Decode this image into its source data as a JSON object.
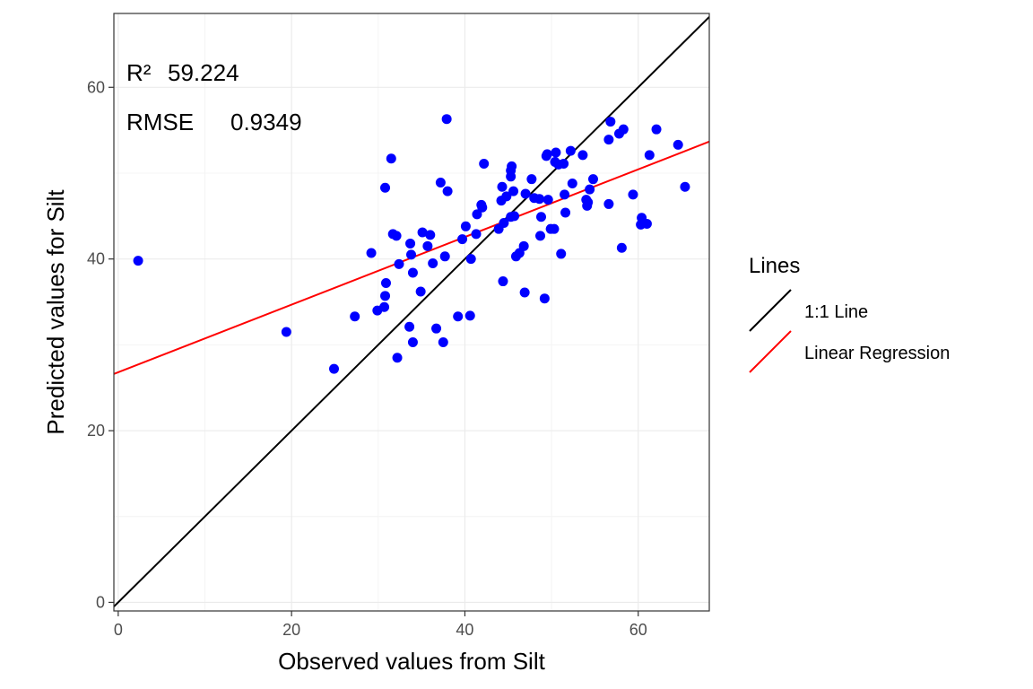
{
  "chart_data": {
    "type": "scatter",
    "title": "",
    "xlabel": "Observed values from Silt",
    "ylabel": "Predicted values for Silt",
    "xlim": [
      -0.5,
      68.2
    ],
    "ylim": [
      -1.0,
      68.6
    ],
    "xticks": [
      0,
      20,
      40,
      60
    ],
    "yticks": [
      0,
      20,
      40,
      60
    ],
    "grid": true,
    "annotations": {
      "r2_label": "R²",
      "r2_value": "59.224",
      "rmse_label": "RMSE",
      "rmse_value": "0.9349"
    },
    "legend": {
      "title": "Lines",
      "position": "right",
      "items": [
        {
          "label": "1:1 Line",
          "color": "#000000"
        },
        {
          "label": "Linear Regression",
          "color": "#ff0000"
        }
      ]
    },
    "lines": {
      "identity": {
        "slope": 1,
        "intercept": 0,
        "color": "#000000"
      },
      "regression": {
        "slope": 0.394,
        "intercept": 26.8,
        "color": "#ff0000"
      }
    },
    "point_color": "#0000ff",
    "points": [
      [
        2.3,
        39.8
      ],
      [
        19.4,
        31.5
      ],
      [
        24.9,
        27.2
      ],
      [
        27.3,
        33.3
      ],
      [
        29.2,
        40.7
      ],
      [
        29.9,
        34.0
      ],
      [
        30.7,
        34.4
      ],
      [
        30.8,
        35.7
      ],
      [
        30.9,
        37.2
      ],
      [
        30.8,
        48.3
      ],
      [
        31.5,
        51.7
      ],
      [
        31.7,
        42.9
      ],
      [
        32.1,
        42.7
      ],
      [
        32.2,
        28.5
      ],
      [
        32.4,
        39.4
      ],
      [
        33.6,
        32.1
      ],
      [
        33.7,
        41.8
      ],
      [
        33.8,
        40.5
      ],
      [
        34.0,
        38.4
      ],
      [
        34.0,
        30.3
      ],
      [
        34.9,
        36.2
      ],
      [
        35.1,
        43.1
      ],
      [
        35.7,
        41.5
      ],
      [
        36.0,
        42.8
      ],
      [
        36.3,
        39.5
      ],
      [
        36.7,
        31.9
      ],
      [
        37.2,
        48.9
      ],
      [
        37.5,
        30.3
      ],
      [
        37.7,
        40.3
      ],
      [
        37.9,
        56.3
      ],
      [
        38.0,
        47.9
      ],
      [
        39.2,
        33.3
      ],
      [
        39.7,
        42.3
      ],
      [
        40.1,
        43.8
      ],
      [
        40.6,
        33.4
      ],
      [
        40.7,
        40.0
      ],
      [
        41.3,
        42.9
      ],
      [
        41.4,
        45.2
      ],
      [
        41.9,
        46.3
      ],
      [
        42.0,
        46.0
      ],
      [
        42.2,
        51.1
      ],
      [
        43.9,
        43.5
      ],
      [
        44.2,
        46.8
      ],
      [
        44.3,
        48.4
      ],
      [
        44.4,
        37.4
      ],
      [
        44.5,
        44.2
      ],
      [
        44.8,
        47.3
      ],
      [
        45.3,
        44.9
      ],
      [
        45.3,
        50.3
      ],
      [
        45.3,
        49.6
      ],
      [
        45.4,
        50.8
      ],
      [
        45.6,
        47.9
      ],
      [
        45.7,
        45.0
      ],
      [
        45.9,
        40.3
      ],
      [
        46.3,
        40.7
      ],
      [
        46.8,
        41.5
      ],
      [
        46.9,
        36.1
      ],
      [
        47.0,
        47.6
      ],
      [
        47.7,
        49.3
      ],
      [
        48.0,
        47.1
      ],
      [
        48.6,
        47.0
      ],
      [
        48.7,
        42.7
      ],
      [
        48.8,
        44.9
      ],
      [
        49.2,
        35.4
      ],
      [
        49.4,
        52.0
      ],
      [
        49.5,
        52.2
      ],
      [
        49.6,
        46.9
      ],
      [
        49.9,
        43.5
      ],
      [
        50.3,
        43.5
      ],
      [
        50.4,
        51.3
      ],
      [
        50.5,
        52.4
      ],
      [
        50.8,
        51.0
      ],
      [
        51.1,
        40.6
      ],
      [
        51.4,
        51.1
      ],
      [
        51.5,
        47.5
      ],
      [
        51.6,
        45.4
      ],
      [
        52.2,
        52.6
      ],
      [
        52.4,
        48.8
      ],
      [
        53.6,
        52.1
      ],
      [
        54.0,
        46.9
      ],
      [
        54.1,
        46.2
      ],
      [
        54.2,
        46.6
      ],
      [
        54.4,
        48.1
      ],
      [
        54.8,
        49.3
      ],
      [
        56.6,
        46.4
      ],
      [
        56.6,
        53.9
      ],
      [
        56.8,
        56.0
      ],
      [
        57.8,
        54.6
      ],
      [
        58.1,
        41.3
      ],
      [
        58.3,
        55.1
      ],
      [
        59.4,
        47.5
      ],
      [
        60.3,
        44.0
      ],
      [
        60.4,
        44.8
      ],
      [
        61.0,
        44.1
      ],
      [
        61.3,
        52.1
      ],
      [
        62.1,
        55.1
      ],
      [
        64.6,
        53.3
      ],
      [
        65.4,
        48.4
      ]
    ]
  }
}
